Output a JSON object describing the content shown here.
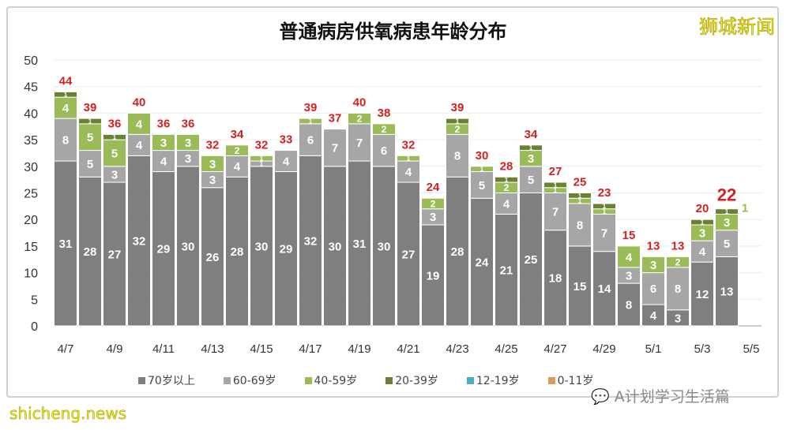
{
  "chart_data": {
    "type": "bar",
    "stacked": true,
    "title": "普通病房供氧病患年龄分布",
    "categories": [
      "4/7",
      "4/8",
      "4/9",
      "4/10",
      "4/11",
      "4/12",
      "4/13",
      "4/14",
      "4/15",
      "4/16",
      "4/17",
      "4/18",
      "4/19",
      "4/20",
      "4/21",
      "4/22",
      "4/23",
      "4/24",
      "4/25",
      "4/26",
      "4/27",
      "4/28",
      "4/29",
      "4/30",
      "5/1",
      "5/2",
      "5/3",
      "5/4",
      "5/5"
    ],
    "x_tick_labels": [
      "4/7",
      "4/9",
      "4/11",
      "4/13",
      "4/15",
      "4/17",
      "4/19",
      "4/21",
      "4/23",
      "4/25",
      "4/27",
      "4/29",
      "5/1",
      "5/3",
      "5/5"
    ],
    "series": [
      {
        "name": "70岁以上",
        "color": "#7f7f7f",
        "values": [
          31,
          28,
          27,
          32,
          29,
          30,
          26,
          28,
          30,
          29,
          32,
          30,
          31,
          30,
          27,
          19,
          28,
          24,
          21,
          25,
          18,
          15,
          14,
          8,
          4,
          3,
          12,
          13,
          null
        ]
      },
      {
        "name": "60-69岁",
        "color": "#a6a6a6",
        "values": [
          8,
          5,
          3,
          4,
          4,
          3,
          3,
          4,
          1,
          4,
          6,
          7,
          7,
          6,
          4,
          3,
          8,
          5,
          4,
          5,
          7,
          8,
          7,
          3,
          6,
          8,
          4,
          5,
          null
        ]
      },
      {
        "name": "40-59岁",
        "color": "#9bbb59",
        "values": [
          4,
          5,
          5,
          4,
          3,
          3,
          3,
          2,
          1,
          0,
          1,
          0,
          2,
          2,
          1,
          2,
          2,
          1,
          2,
          3,
          1,
          1,
          1,
          4,
          3,
          2,
          3,
          3,
          null
        ]
      },
      {
        "name": "20-39岁",
        "color": "#6b7f35",
        "values": [
          1,
          1,
          1,
          0,
          0,
          0,
          0,
          0,
          0,
          0,
          0,
          0,
          0,
          0,
          0,
          0,
          1,
          0,
          1,
          1,
          1,
          1,
          1,
          0,
          0,
          0,
          1,
          1,
          null
        ]
      },
      {
        "name": "12-19岁",
        "color": "#4bacc6",
        "values": [
          0,
          0,
          0,
          0,
          0,
          0,
          0,
          0,
          0,
          0,
          0,
          0,
          0,
          0,
          0,
          0,
          0,
          0,
          0,
          0,
          0,
          0,
          0,
          0,
          0,
          0,
          0,
          0,
          null
        ]
      },
      {
        "name": "0-11岁",
        "color": "#d99a5b",
        "values": [
          0,
          0,
          0,
          0,
          0,
          0,
          0,
          0,
          0,
          0,
          0,
          0,
          0,
          0,
          0,
          0,
          0,
          0,
          0,
          0,
          0,
          0,
          0,
          0,
          0,
          0,
          0,
          0,
          null
        ]
      }
    ],
    "totals": [
      44,
      39,
      36,
      40,
      36,
      36,
      32,
      34,
      32,
      33,
      39,
      37,
      40,
      38,
      32,
      24,
      39,
      30,
      28,
      34,
      27,
      25,
      23,
      15,
      13,
      13,
      20,
      22,
      null
    ],
    "annotation": "1",
    "ylim": [
      0,
      50
    ],
    "y_ticks": [
      0,
      5,
      10,
      15,
      20,
      25,
      30,
      35,
      40,
      45,
      50
    ],
    "grid": true,
    "legend_position": "bottom",
    "total_label_color": "#d42020"
  },
  "watermarks": {
    "top_right": "狮城新闻",
    "bottom_left": "shicheng.news",
    "wechat": "A计划学习生活篇"
  }
}
